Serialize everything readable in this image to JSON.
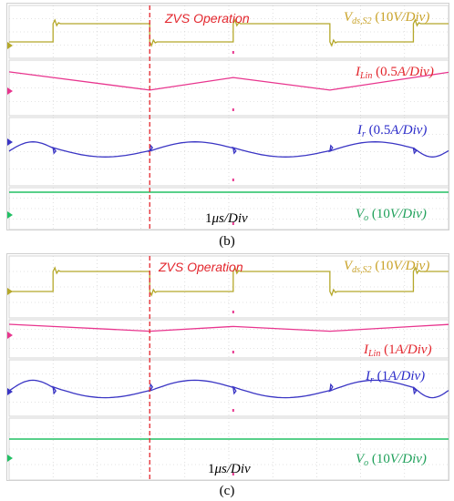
{
  "colors": {
    "vds": "#b5a82a",
    "ilin": "#e8358e",
    "ir": "#3a35c4",
    "vo": "#22c064",
    "zvs": "#e3262d",
    "grid": "#c8c8c8"
  },
  "chart_data": [
    {
      "type": "line",
      "caption": "(b)",
      "annotation": "ZVS Operation",
      "time_scale": {
        "value": "1",
        "unit": "μs",
        "per": "/Div"
      },
      "zvs_marker_time_div": 3.2,
      "time_window_div": [
        0,
        10
      ],
      "series": [
        {
          "name": "Vds,S2",
          "label": {
            "symbol": "V",
            "sub": "ds,S2",
            "scale": "(10",
            "unit": "V",
            "per": "/Div)"
          },
          "color": "#b5a82a",
          "kind": "square",
          "edges_div": [
            1.0,
            3.2,
            5.1,
            7.3,
            9.2
          ],
          "high_first": false,
          "level_divs": 1.6,
          "ringing": true
        },
        {
          "name": "ILin",
          "label": {
            "symbol": "I",
            "sub": "Lin",
            "scale": "(0.5",
            "unit": "A",
            "per": "/Div)"
          },
          "color": "#e8358e",
          "kind": "triangle",
          "peaks_div": [
            1.0,
            5.1,
            9.2
          ],
          "valleys_div": [
            3.2,
            7.3
          ],
          "amplitude_divs": 0.45
        },
        {
          "name": "Ir",
          "label": {
            "symbol": "I",
            "sub": "r",
            "scale": "(0.5",
            "unit": "A",
            "per": "/Div)"
          },
          "color": "#3a35c4",
          "kind": "resonant",
          "edges_div": [
            1.0,
            3.2,
            5.1,
            7.3,
            9.2
          ],
          "amplitude_divs": 0.5
        },
        {
          "name": "Vo",
          "label": {
            "symbol": "V",
            "sub": "o",
            "scale": "(10",
            "unit": "V",
            "per": "/Div)"
          },
          "color": "#22c064",
          "kind": "flat"
        }
      ]
    },
    {
      "type": "line",
      "caption": "(c)",
      "annotation": "ZVS Operation",
      "time_scale": {
        "value": "1",
        "unit": "μs",
        "per": "/Div"
      },
      "zvs_marker_time_div": 3.2,
      "time_window_div": [
        0,
        10
      ],
      "series": [
        {
          "name": "Vds,S2",
          "label": {
            "symbol": "V",
            "sub": "ds,S2",
            "scale": "(10",
            "unit": "V",
            "per": "/Div)"
          },
          "color": "#b5a82a",
          "kind": "square",
          "edges_div": [
            1.0,
            3.2,
            5.1,
            7.3,
            9.2
          ],
          "high_first": false,
          "level_divs": 1.6,
          "ringing": true
        },
        {
          "name": "ILin",
          "label": {
            "symbol": "I",
            "sub": "Lin",
            "scale": "(1",
            "unit": "A",
            "per": "/Div)"
          },
          "color": "#e8358e",
          "kind": "triangle",
          "peaks_div": [
            1.0,
            5.1,
            9.2
          ],
          "valleys_div": [
            3.2,
            7.3
          ],
          "amplitude_divs": 0.25
        },
        {
          "name": "Ir",
          "label": {
            "symbol": "I",
            "sub": "r",
            "scale": "(1",
            "unit": "A",
            "per": "/Div)"
          },
          "color": "#3a35c4",
          "kind": "resonant",
          "edges_div": [
            1.0,
            3.2,
            5.1,
            7.3,
            9.2
          ],
          "amplitude_divs": 0.7
        },
        {
          "name": "Vo",
          "label": {
            "symbol": "V",
            "sub": "o",
            "scale": "(10",
            "unit": "V",
            "per": "/Div)"
          },
          "color": "#22c064",
          "kind": "flat"
        }
      ]
    }
  ]
}
